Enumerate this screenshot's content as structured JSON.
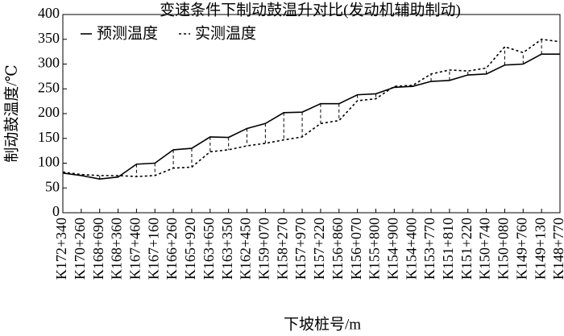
{
  "chart_data": {
    "type": "line",
    "title": "变速条件下制动鼓温升对比(发动机辅助制动)",
    "x_label": "下坡桩号/m",
    "y_label": "制动鼓温度/℃",
    "categories": [
      "K172+340",
      "K170+260",
      "K168+690",
      "K168+360",
      "K167+460",
      "K167+160",
      "K166+260",
      "K165+920",
      "K163+650",
      "K163+350",
      "K162+450",
      "K159+070",
      "K158+270",
      "K157+970",
      "K157+220",
      "K156+860",
      "K156+070",
      "K155+800",
      "K154+900",
      "K154+400",
      "K153+770",
      "K151+810",
      "K151+220",
      "K150+740",
      "K150+080",
      "K149+760",
      "K149+130",
      "K148+770"
    ],
    "series": [
      {
        "name": "预测温度",
        "color": "#000000",
        "dash": "solid",
        "values": [
          80,
          75,
          68,
          72,
          98,
          100,
          127,
          130,
          153,
          152,
          170,
          180,
          202,
          203,
          220,
          220,
          238,
          240,
          253,
          255,
          265,
          267,
          278,
          280,
          298,
          300,
          320,
          320
        ]
      },
      {
        "name": "实测温度",
        "color": "#000000",
        "dash": "dotted",
        "values": [
          82,
          77,
          75,
          75,
          73,
          75,
          90,
          92,
          123,
          127,
          135,
          140,
          147,
          153,
          180,
          186,
          226,
          230,
          255,
          257,
          280,
          288,
          286,
          292,
          335,
          323,
          350,
          345
        ]
      }
    ],
    "ylim": [
      0,
      400
    ],
    "yticks": [
      0,
      50,
      100,
      150,
      200,
      250,
      300,
      350,
      400
    ],
    "legend": "upper left"
  }
}
